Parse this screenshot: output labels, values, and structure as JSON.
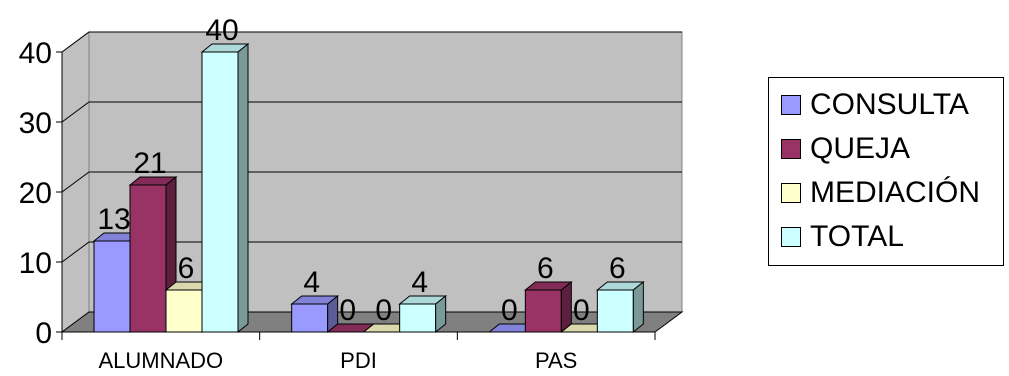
{
  "chart_data": {
    "type": "bar",
    "title": "",
    "xlabel": "",
    "ylabel": "",
    "categories": [
      "ALUMNADO",
      "PDI",
      "PAS"
    ],
    "series": [
      {
        "name": "CONSULTA",
        "values": [
          13,
          4,
          0
        ],
        "color": "#9999ff"
      },
      {
        "name": "QUEJA",
        "values": [
          21,
          0,
          6
        ],
        "color": "#993366"
      },
      {
        "name": "MEDIACIÓN",
        "values": [
          6,
          0,
          0
        ],
        "color": "#ffffcc"
      },
      {
        "name": "TOTAL",
        "values": [
          40,
          4,
          6
        ],
        "color": "#ccffff"
      }
    ],
    "ylim": [
      0,
      40
    ],
    "yticks": [
      0,
      10,
      20,
      30,
      40
    ],
    "grid": true,
    "legend_position": "right",
    "wall_color": "#c0c0c0",
    "floor_color": "#808080"
  }
}
